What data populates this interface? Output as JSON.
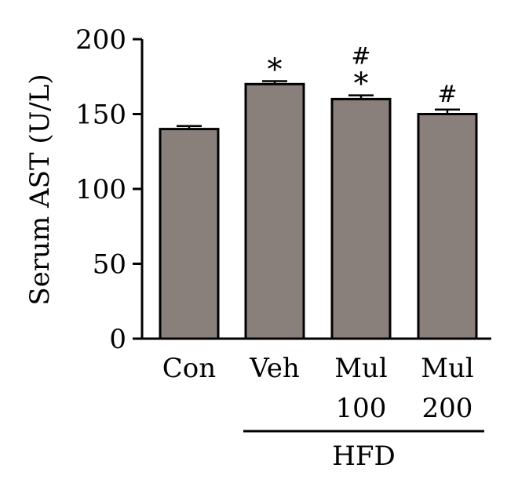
{
  "chart_data": {
    "type": "bar",
    "categories": [
      "Con",
      "Veh",
      "Mul 100",
      "Mul 200"
    ],
    "category_label_lines": [
      [
        "Con"
      ],
      [
        "Veh"
      ],
      [
        "Mul",
        "100"
      ],
      [
        "Mul",
        "200"
      ]
    ],
    "values": [
      140,
      170,
      160,
      150
    ],
    "errors": [
      2,
      2,
      2.5,
      3
    ],
    "annotations": [
      [],
      [
        "*"
      ],
      [
        "#",
        "*"
      ],
      [
        "#"
      ]
    ],
    "ylabel": "Serum AST (U/L)",
    "xlabel": "",
    "ylim": [
      0,
      200
    ],
    "yticks": [
      0,
      50,
      100,
      150,
      200
    ],
    "group_label": {
      "text": "HFD",
      "categories": [
        "Veh",
        "Mul 100",
        "Mul 200"
      ]
    },
    "grid": false,
    "legend": "none",
    "colors": {
      "bar_fill": "#8a807b",
      "bar_stroke": "#000000",
      "axis": "#000000"
    }
  }
}
